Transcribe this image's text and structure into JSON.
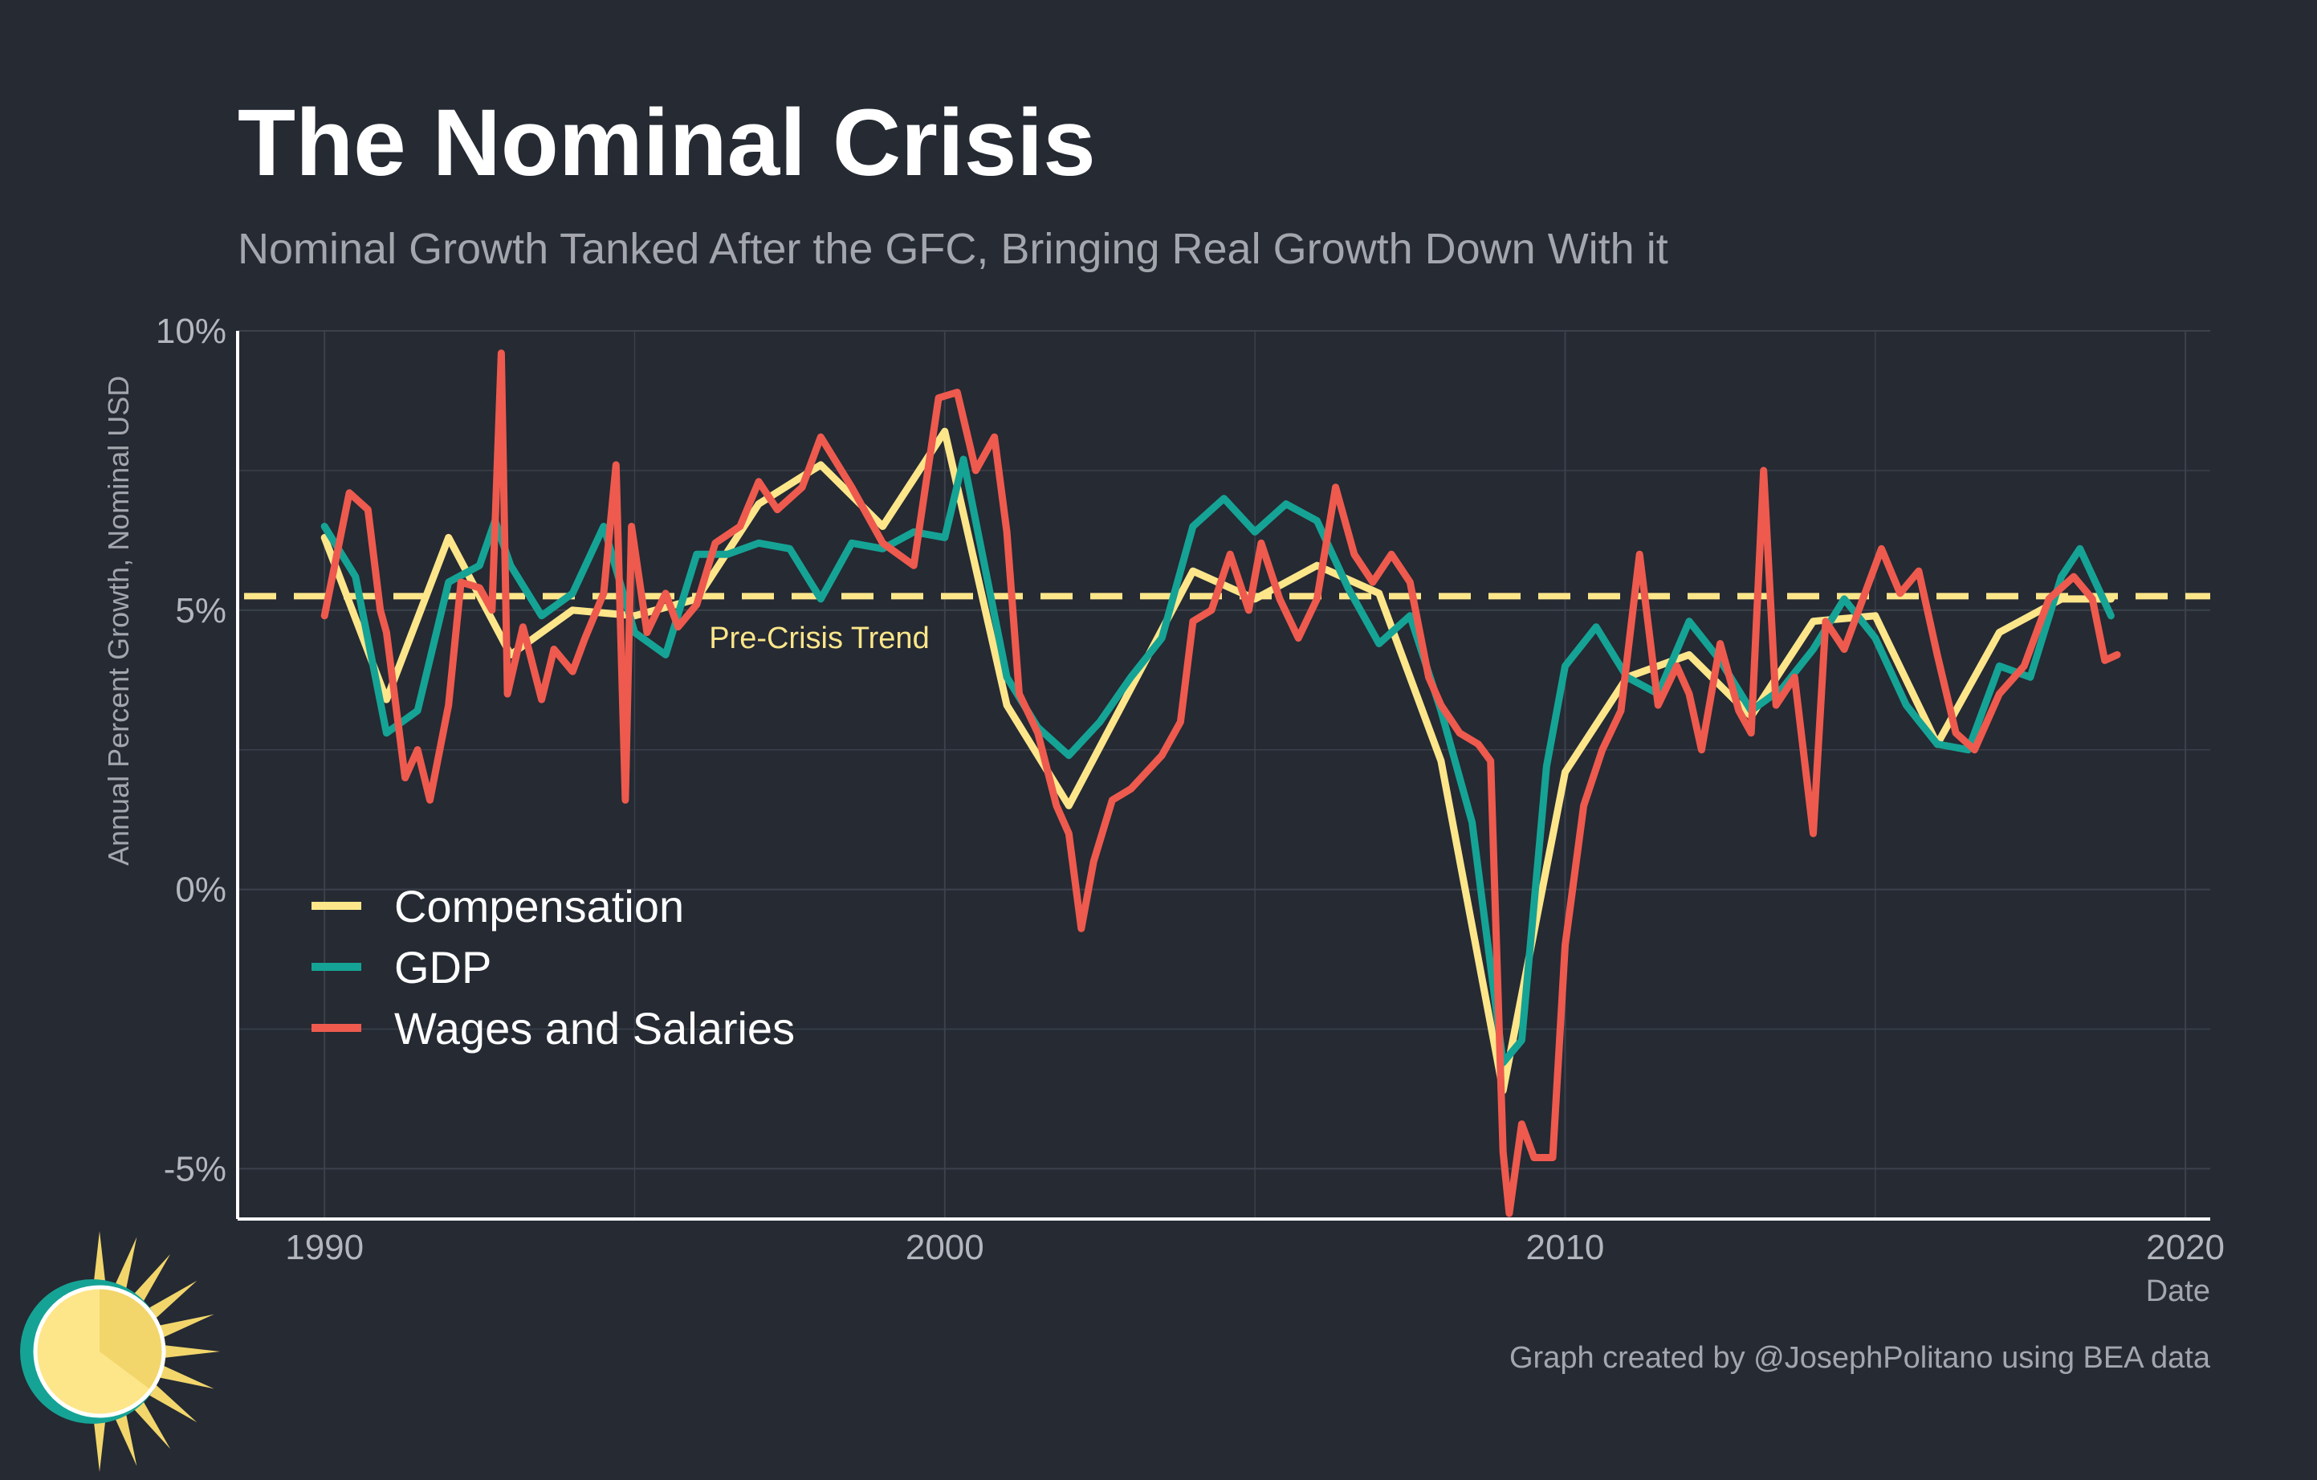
{
  "title": "The Nominal Crisis",
  "subtitle": "Nominal Growth Tanked After the GFC, Bringing Real Growth Down With it",
  "caption": "Graph created by @JosephPolitano using BEA data",
  "colors": {
    "background": "#252a33",
    "grid": "#3c414b",
    "compensation": "#fde68a",
    "gdp": "#15a395",
    "wages": "#ee5a4e"
  },
  "logo": {
    "icon": "sun-clock-logo-icon"
  },
  "chart_data": {
    "type": "line",
    "xlabel": "Date",
    "ylabel": "Annual Percent Growth, Nominal USD",
    "xlim": [
      1988.6,
      2020.4
    ],
    "ylim": [
      -5.9,
      10
    ],
    "x_ticks": [
      {
        "value": 1990,
        "label": "1990"
      },
      {
        "value": 2000,
        "label": "2000"
      },
      {
        "value": 2010,
        "label": "2010"
      },
      {
        "value": 2020,
        "label": "2020"
      }
    ],
    "y_ticks": [
      {
        "value": -5,
        "label": "-5%"
      },
      {
        "value": 0,
        "label": "0%"
      },
      {
        "value": 5,
        "label": "5%"
      },
      {
        "value": 10,
        "label": "10%"
      }
    ],
    "grid": true,
    "legend_position": "bottom-left",
    "reference_line": {
      "value": 5.25,
      "style": "dashed",
      "label": "Pre-Crisis Trend",
      "label_x": 1996.2,
      "label_y": 4.75
    },
    "series": [
      {
        "name": "Compensation",
        "color": "#fde68a",
        "points": [
          [
            1990,
            6.3
          ],
          [
            1991,
            3.4
          ],
          [
            1992,
            6.3
          ],
          [
            1993,
            4.2
          ],
          [
            1994,
            5
          ],
          [
            1995,
            4.9
          ],
          [
            1996,
            5.2
          ],
          [
            1997,
            6.9
          ],
          [
            1998,
            7.6
          ],
          [
            1999,
            6.5
          ],
          [
            2000,
            8.2
          ],
          [
            2001,
            3.3
          ],
          [
            2002,
            1.5
          ],
          [
            2003,
            3.6
          ],
          [
            2004,
            5.7
          ],
          [
            2005,
            5.2
          ],
          [
            2006,
            5.8
          ],
          [
            2007,
            5.3
          ],
          [
            2008,
            2.3
          ],
          [
            2009,
            -3.6
          ],
          [
            2010,
            2.1
          ],
          [
            2011,
            3.8
          ],
          [
            2012,
            4.2
          ],
          [
            2013,
            3.1
          ],
          [
            2014,
            4.8
          ],
          [
            2015,
            4.9
          ],
          [
            2016,
            2.6
          ],
          [
            2017,
            4.6
          ],
          [
            2018,
            5.2
          ],
          [
            2018.8,
            5.2
          ]
        ]
      },
      {
        "name": "GDP",
        "color": "#15a395",
        "points": [
          [
            1990,
            6.5
          ],
          [
            1990.5,
            5.6
          ],
          [
            1991,
            2.8
          ],
          [
            1991.5,
            3.2
          ],
          [
            1992,
            5.5
          ],
          [
            1992.5,
            5.8
          ],
          [
            1992.75,
            6.6
          ],
          [
            1993,
            5.8
          ],
          [
            1993.5,
            4.9
          ],
          [
            1994,
            5.3
          ],
          [
            1994.5,
            6.5
          ],
          [
            1995,
            4.6
          ],
          [
            1995.5,
            4.2
          ],
          [
            1996,
            6
          ],
          [
            1996.5,
            6
          ],
          [
            1997,
            6.2
          ],
          [
            1997.5,
            6.1
          ],
          [
            1998,
            5.2
          ],
          [
            1998.5,
            6.2
          ],
          [
            1999,
            6.1
          ],
          [
            1999.5,
            6.4
          ],
          [
            2000,
            6.3
          ],
          [
            2000.3,
            7.7
          ],
          [
            2001,
            3.8
          ],
          [
            2001.5,
            2.9
          ],
          [
            2002,
            2.4
          ],
          [
            2002.5,
            3
          ],
          [
            2003,
            3.8
          ],
          [
            2003.5,
            4.5
          ],
          [
            2004,
            6.5
          ],
          [
            2004.5,
            7
          ],
          [
            2005,
            6.4
          ],
          [
            2005.5,
            6.9
          ],
          [
            2006,
            6.6
          ],
          [
            2006.5,
            5.4
          ],
          [
            2007,
            4.4
          ],
          [
            2007.5,
            4.9
          ],
          [
            2008,
            3.2
          ],
          [
            2008.5,
            1.2
          ],
          [
            2009,
            -3.1
          ],
          [
            2009.3,
            -2.7
          ],
          [
            2009.7,
            2.2
          ],
          [
            2010,
            4
          ],
          [
            2010.5,
            4.7
          ],
          [
            2011,
            3.8
          ],
          [
            2011.5,
            3.5
          ],
          [
            2012,
            4.8
          ],
          [
            2012.5,
            4.1
          ],
          [
            2013,
            3.2
          ],
          [
            2013.5,
            3.6
          ],
          [
            2014,
            4.3
          ],
          [
            2014.5,
            5.2
          ],
          [
            2015,
            4.5
          ],
          [
            2015.5,
            3.3
          ],
          [
            2016,
            2.6
          ],
          [
            2016.5,
            2.5
          ],
          [
            2017,
            4
          ],
          [
            2017.5,
            3.8
          ],
          [
            2018,
            5.6
          ],
          [
            2018.3,
            6.1
          ],
          [
            2018.8,
            4.9
          ]
        ]
      },
      {
        "name": "Wages and Salaries",
        "color": "#ee5a4e",
        "points": [
          [
            1990,
            4.9
          ],
          [
            1990.4,
            7.1
          ],
          [
            1990.7,
            6.8
          ],
          [
            1990.9,
            5
          ],
          [
            1991,
            4.6
          ],
          [
            1991.3,
            2
          ],
          [
            1991.5,
            2.5
          ],
          [
            1991.7,
            1.6
          ],
          [
            1992,
            3.3
          ],
          [
            1992.2,
            5.5
          ],
          [
            1992.5,
            5.4
          ],
          [
            1992.7,
            5
          ],
          [
            1992.85,
            9.6
          ],
          [
            1992.95,
            3.5
          ],
          [
            1993.2,
            4.7
          ],
          [
            1993.5,
            3.4
          ],
          [
            1993.7,
            4.3
          ],
          [
            1994,
            3.9
          ],
          [
            1994.2,
            4.5
          ],
          [
            1994.5,
            5.3
          ],
          [
            1994.7,
            7.6
          ],
          [
            1994.85,
            1.6
          ],
          [
            1994.95,
            6.5
          ],
          [
            1995.2,
            4.6
          ],
          [
            1995.5,
            5.3
          ],
          [
            1995.7,
            4.7
          ],
          [
            1996,
            5.1
          ],
          [
            1996.3,
            6.2
          ],
          [
            1996.7,
            6.5
          ],
          [
            1997,
            7.3
          ],
          [
            1997.3,
            6.8
          ],
          [
            1997.7,
            7.2
          ],
          [
            1998,
            8.1
          ],
          [
            1998.5,
            7.2
          ],
          [
            1999,
            6.2
          ],
          [
            1999.5,
            5.8
          ],
          [
            1999.9,
            8.8
          ],
          [
            2000.2,
            8.9
          ],
          [
            2000.5,
            7.5
          ],
          [
            2000.8,
            8.1
          ],
          [
            2001,
            6.4
          ],
          [
            2001.2,
            3.5
          ],
          [
            2001.5,
            2.8
          ],
          [
            2001.8,
            1.5
          ],
          [
            2002,
            1
          ],
          [
            2002.2,
            -0.7
          ],
          [
            2002.4,
            0.5
          ],
          [
            2002.7,
            1.6
          ],
          [
            2003,
            1.8
          ],
          [
            2003.5,
            2.4
          ],
          [
            2003.8,
            3
          ],
          [
            2004,
            4.8
          ],
          [
            2004.3,
            5
          ],
          [
            2004.6,
            6
          ],
          [
            2004.9,
            5
          ],
          [
            2005.1,
            6.2
          ],
          [
            2005.4,
            5.2
          ],
          [
            2005.7,
            4.5
          ],
          [
            2006,
            5.2
          ],
          [
            2006.3,
            7.2
          ],
          [
            2006.6,
            6
          ],
          [
            2006.9,
            5.5
          ],
          [
            2007.2,
            6
          ],
          [
            2007.5,
            5.5
          ],
          [
            2007.8,
            3.8
          ],
          [
            2008,
            3.3
          ],
          [
            2008.3,
            2.8
          ],
          [
            2008.6,
            2.6
          ],
          [
            2008.8,
            2.3
          ],
          [
            2009,
            -4.7
          ],
          [
            2009.1,
            -5.8
          ],
          [
            2009.3,
            -4.2
          ],
          [
            2009.5,
            -4.8
          ],
          [
            2009.8,
            -4.8
          ],
          [
            2010,
            -1
          ],
          [
            2010.3,
            1.5
          ],
          [
            2010.6,
            2.5
          ],
          [
            2010.9,
            3.2
          ],
          [
            2011.2,
            6
          ],
          [
            2011.5,
            3.3
          ],
          [
            2011.8,
            4
          ],
          [
            2012,
            3.5
          ],
          [
            2012.2,
            2.5
          ],
          [
            2012.5,
            4.4
          ],
          [
            2012.8,
            3.2
          ],
          [
            2013,
            2.8
          ],
          [
            2013.2,
            7.5
          ],
          [
            2013.4,
            3.3
          ],
          [
            2013.7,
            3.8
          ],
          [
            2014,
            1
          ],
          [
            2014.2,
            4.8
          ],
          [
            2014.5,
            4.3
          ],
          [
            2014.8,
            5.2
          ],
          [
            2015.1,
            6.1
          ],
          [
            2015.4,
            5.3
          ],
          [
            2015.7,
            5.7
          ],
          [
            2016,
            4.2
          ],
          [
            2016.3,
            2.8
          ],
          [
            2016.6,
            2.5
          ],
          [
            2017,
            3.5
          ],
          [
            2017.4,
            4
          ],
          [
            2017.8,
            5.2
          ],
          [
            2018.2,
            5.6
          ],
          [
            2018.5,
            5.2
          ],
          [
            2018.7,
            4.1
          ],
          [
            2018.9,
            4.2
          ]
        ]
      }
    ]
  }
}
